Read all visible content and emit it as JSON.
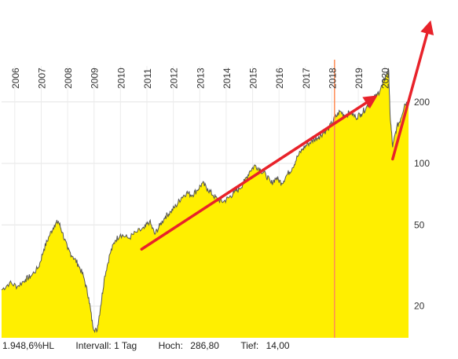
{
  "chart_data": {
    "type": "area",
    "title": "",
    "xlabel": "",
    "ylabel": "",
    "y_scale": "log",
    "ylim": [
      14,
      300
    ],
    "xlim": [
      2005.5,
      2020.9
    ],
    "x_ticks": [
      "2006",
      "2007",
      "2008",
      "2009",
      "2010",
      "2011",
      "2012",
      "2013",
      "2014",
      "2015",
      "2016",
      "2017",
      "2018",
      "2019",
      "2020"
    ],
    "y_ticks": [
      20,
      50,
      100,
      200
    ],
    "fill_color": "#ffef00",
    "line_color": "#555555",
    "grid": true,
    "series": [
      {
        "x": [
          2005.5,
          2005.8,
          2006.1,
          2006.4,
          2006.6,
          2006.9,
          2007.1,
          2007.3,
          2007.5,
          2007.65,
          2007.8,
          2008.0,
          2008.2,
          2008.4,
          2008.6,
          2008.8,
          2008.95,
          2009.1,
          2009.25,
          2009.4,
          2009.6,
          2009.8,
          2010.0,
          2010.3,
          2010.6,
          2010.9,
          2011.1,
          2011.3,
          2011.5,
          2011.7,
          2011.9,
          2012.1,
          2012.3,
          2012.5,
          2012.7,
          2012.9,
          2013.1,
          2013.3,
          2013.5,
          2013.7,
          2013.9,
          2014.1,
          2014.3,
          2014.5,
          2014.7,
          2014.9,
          2015.1,
          2015.3,
          2015.5,
          2015.7,
          2015.9,
          2016.1,
          2016.3,
          2016.5,
          2016.7,
          2016.9,
          2017.1,
          2017.3,
          2017.5,
          2017.7,
          2017.9,
          2018.1,
          2018.3,
          2018.5,
          2018.7,
          2018.9,
          2019.1,
          2019.3,
          2019.5,
          2019.7,
          2019.9,
          2020.05,
          2020.15,
          2020.2,
          2020.3,
          2020.45,
          2020.6,
          2020.75,
          2020.9
        ],
        "values": [
          24,
          26,
          25,
          27,
          28,
          31,
          38,
          44,
          50,
          52,
          46,
          38,
          35,
          32,
          28,
          22,
          16,
          15,
          20,
          28,
          36,
          42,
          45,
          43,
          46,
          48,
          52,
          45,
          50,
          55,
          58,
          62,
          68,
          72,
          70,
          74,
          80,
          75,
          70,
          66,
          65,
          68,
          72,
          75,
          82,
          92,
          98,
          93,
          88,
          80,
          85,
          80,
          88,
          95,
          108,
          118,
          125,
          130,
          135,
          142,
          150,
          165,
          180,
          172,
          178,
          168,
          175,
          188,
          205,
          215,
          240,
          270,
          286,
          175,
          120,
          150,
          165,
          195,
          200
        ]
      }
    ],
    "annotations": {
      "vertical_marker_x": 2018.1,
      "arrows": [
        {
          "from": [
            2010.8,
            38
          ],
          "to": [
            2019.6,
            210
          ]
        },
        {
          "from": [
            2020.3,
            105
          ],
          "to": [
            2021.7,
            480
          ]
        }
      ],
      "arrow_color": "#e8222a",
      "marker_color": "#ff8c55"
    }
  },
  "footer": {
    "change": "1.948,6%HL",
    "interval": "Intervall: 1 Tag",
    "high_label": "Hoch:",
    "high_value": "286,80",
    "low_label": "Tief:",
    "low_value": "14,00"
  }
}
